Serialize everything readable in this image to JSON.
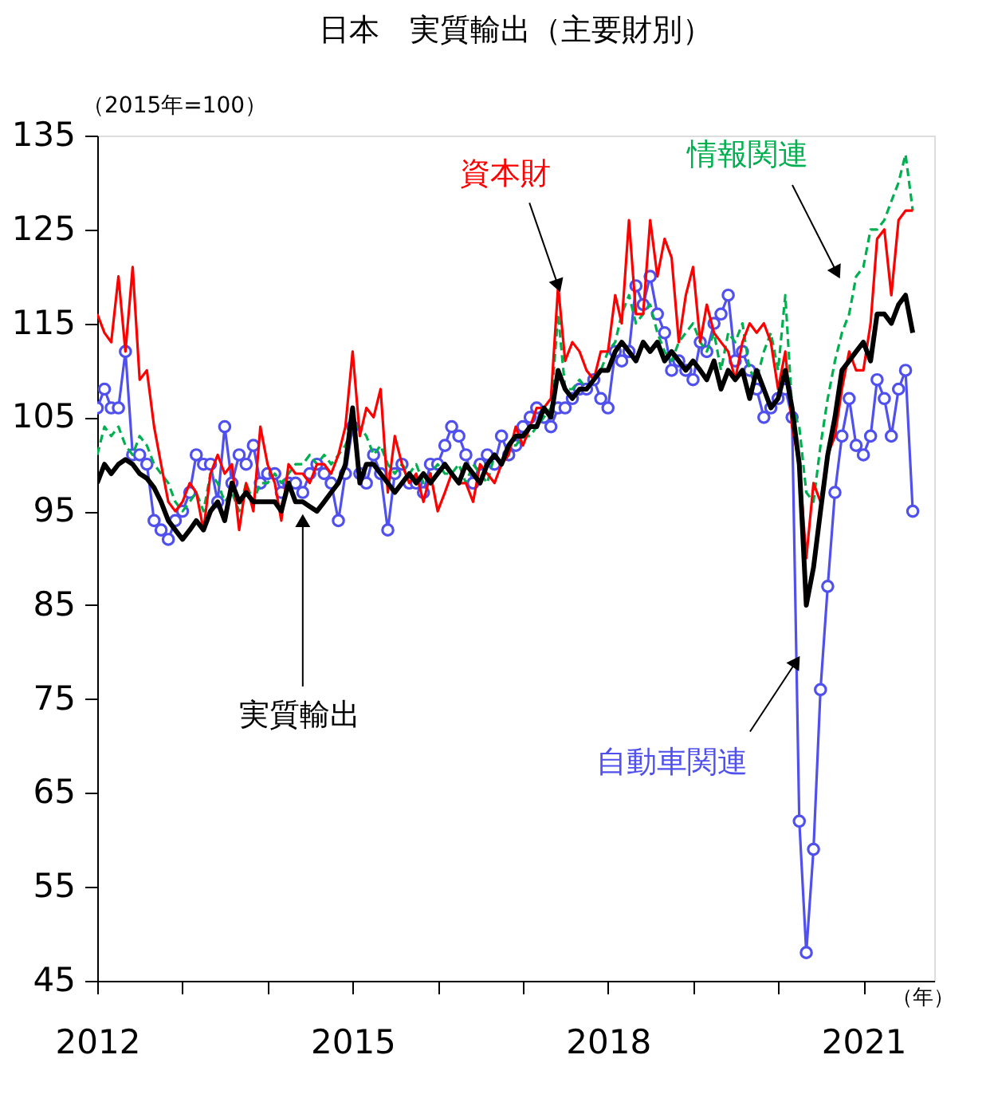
{
  "chart_data": {
    "type": "line",
    "title": "日本　実質輸出（主要財別）",
    "ylabel": "（2015年=100）",
    "xlabel": "（年）",
    "x": [
      "2012-01",
      "2012-02",
      "2012-03",
      "2012-04",
      "2012-05",
      "2012-06",
      "2012-07",
      "2012-08",
      "2012-09",
      "2012-10",
      "2012-11",
      "2012-12",
      "2013-01",
      "2013-02",
      "2013-03",
      "2013-04",
      "2013-05",
      "2013-06",
      "2013-07",
      "2013-08",
      "2013-09",
      "2013-10",
      "2013-11",
      "2013-12",
      "2014-01",
      "2014-02",
      "2014-03",
      "2014-04",
      "2014-05",
      "2014-06",
      "2014-07",
      "2014-08",
      "2014-09",
      "2014-10",
      "2014-11",
      "2014-12",
      "2015-01",
      "2015-02",
      "2015-03",
      "2015-04",
      "2015-05",
      "2015-06",
      "2015-07",
      "2015-08",
      "2015-09",
      "2015-10",
      "2015-11",
      "2015-12",
      "2016-01",
      "2016-02",
      "2016-03",
      "2016-04",
      "2016-05",
      "2016-06",
      "2016-07",
      "2016-08",
      "2016-09",
      "2016-10",
      "2016-11",
      "2016-12",
      "2017-01",
      "2017-02",
      "2017-03",
      "2017-04",
      "2017-05",
      "2017-06",
      "2017-07",
      "2017-08",
      "2017-09",
      "2017-10",
      "2017-11",
      "2017-12",
      "2018-01",
      "2018-02",
      "2018-03",
      "2018-04",
      "2018-05",
      "2018-06",
      "2018-07",
      "2018-08",
      "2018-09",
      "2018-10",
      "2018-11",
      "2018-12",
      "2019-01",
      "2019-02",
      "2019-03",
      "2019-04",
      "2019-05",
      "2019-06",
      "2019-07",
      "2019-08",
      "2019-09",
      "2019-10",
      "2019-11",
      "2019-12",
      "2020-01",
      "2020-02",
      "2020-03",
      "2020-04",
      "2020-05",
      "2020-06",
      "2020-07",
      "2020-08",
      "2020-09",
      "2020-10",
      "2020-11",
      "2020-12",
      "2021-01",
      "2021-02",
      "2021-03",
      "2021-04",
      "2021-05",
      "2021-06",
      "2021-07",
      "2021-08"
    ],
    "xlim": [
      "2012-01",
      "2021-11"
    ],
    "xticks": [
      {
        "value": "2012-01",
        "label": "2012"
      },
      {
        "value": "2013-01",
        "label": null
      },
      {
        "value": "2014-01",
        "label": null
      },
      {
        "value": "2015-01",
        "label": "2015"
      },
      {
        "value": "2016-01",
        "label": null
      },
      {
        "value": "2017-01",
        "label": null
      },
      {
        "value": "2018-01",
        "label": "2018"
      },
      {
        "value": "2019-01",
        "label": null
      },
      {
        "value": "2020-01",
        "label": null
      },
      {
        "value": "2021-01",
        "label": "2021"
      }
    ],
    "ylim": [
      45,
      135
    ],
    "yticks": [
      45,
      55,
      65,
      75,
      85,
      95,
      105,
      115,
      125,
      135
    ],
    "series": [
      {
        "color": "#000000",
        "values": [
          98,
          100,
          99,
          100,
          100.5,
          100,
          99,
          98.5,
          97.5,
          96,
          94,
          93,
          92,
          93,
          94,
          93,
          95,
          96,
          94,
          98,
          96,
          97,
          96,
          96,
          96,
          96,
          95,
          98,
          96,
          96,
          95.5,
          95,
          96,
          97,
          98,
          100,
          106,
          98,
          100,
          100,
          99,
          98,
          97,
          98,
          99,
          98,
          99,
          98,
          99,
          100,
          99,
          98,
          100,
          99,
          98,
          100,
          101,
          100,
          102,
          103,
          103,
          104,
          104,
          106,
          105,
          110,
          108,
          107,
          108,
          108,
          109,
          110,
          110,
          112,
          113,
          112,
          111,
          113,
          112,
          113,
          111,
          112,
          111,
          110,
          111,
          110,
          109,
          111,
          108,
          110,
          109,
          110,
          107,
          110,
          108,
          106,
          107,
          110,
          106,
          100,
          85,
          89,
          95,
          101,
          105,
          110,
          111,
          112,
          113,
          111,
          116,
          116,
          115,
          117,
          118,
          114
        ]
      },
      {
        "color": "#ff0000",
        "values": [
          116,
          114,
          113,
          120,
          112,
          121,
          109,
          110,
          104,
          100,
          96,
          95,
          96,
          98,
          97,
          93,
          99,
          101,
          99,
          100,
          93,
          98,
          95,
          104,
          100,
          98,
          94,
          100,
          99,
          99,
          98,
          100,
          100,
          99,
          101,
          104,
          112,
          103,
          106,
          105,
          108,
          97,
          103,
          100,
          98,
          99,
          96,
          99,
          95,
          97,
          99,
          98,
          98,
          96,
          100,
          99,
          98,
          100,
          101,
          104,
          102,
          104,
          106,
          106,
          107,
          119,
          111,
          113,
          112,
          110,
          109,
          112,
          112,
          118,
          115,
          126,
          116,
          116,
          126,
          120,
          124,
          122,
          113,
          118,
          121,
          113,
          117,
          114,
          113,
          112,
          109,
          113,
          115,
          114,
          115,
          113,
          108,
          112,
          104,
          100,
          90,
          98,
          96,
          101,
          103,
          108,
          112,
          110,
          110,
          115,
          124,
          125,
          118,
          126,
          127,
          127
        ]
      },
      {
        "color": "#00b050",
        "line_style": "dashed",
        "values": [
          101,
          104,
          103,
          104,
          102,
          101,
          103,
          102,
          100,
          99,
          98,
          96,
          95,
          96,
          97,
          95,
          99,
          98,
          96,
          97,
          95,
          98,
          96,
          98,
          98,
          99,
          98,
          99,
          100,
          100,
          101,
          100,
          101,
          100,
          101,
          102,
          104,
          104,
          103,
          101,
          102,
          100,
          99,
          100,
          99,
          100,
          98,
          99,
          100,
          99,
          99,
          100,
          98,
          100,
          99,
          98,
          101,
          100,
          102,
          102,
          103,
          103,
          104,
          105,
          106,
          116,
          108,
          108,
          109,
          108,
          109,
          110,
          112,
          113,
          116,
          118,
          115,
          116,
          117,
          114,
          112,
          111,
          113,
          114,
          115,
          113,
          112,
          114,
          110,
          114,
          113,
          115,
          110,
          109,
          112,
          114,
          110,
          118,
          106,
          104,
          97,
          96,
          102,
          107,
          111,
          114,
          116,
          120,
          121,
          125,
          125,
          126,
          128,
          130,
          133,
          127
        ]
      },
      {
        "color": "#5050ee",
        "marker": "circle",
        "values": [
          106,
          108,
          106,
          106,
          112,
          101,
          101,
          100,
          94,
          93,
          92,
          94,
          95,
          97,
          101,
          100,
          100,
          96,
          104,
          98,
          101,
          100,
          102,
          98,
          99,
          99,
          97,
          98,
          98,
          97,
          99,
          100,
          99,
          98,
          94,
          99,
          104,
          99,
          98,
          101,
          99,
          93,
          99,
          100,
          98,
          98,
          97,
          100,
          100,
          102,
          104,
          103,
          101,
          98,
          100,
          101,
          100,
          103,
          101,
          102,
          104,
          105,
          106,
          105,
          104,
          106,
          106,
          107,
          108,
          108,
          109,
          107,
          106,
          112,
          111,
          112,
          119,
          117,
          120,
          116,
          114,
          110,
          111,
          110,
          109,
          113,
          112,
          115,
          116,
          118,
          111,
          112,
          110,
          108,
          105,
          106,
          107,
          108,
          105,
          62,
          48,
          59,
          76,
          87,
          97,
          103,
          107,
          102,
          101,
          103,
          109,
          107,
          103,
          108,
          110,
          95
        ]
      }
    ],
    "annotations": [
      {
        "text": "実質輸出",
        "x": "2014-06",
        "y": 94
      },
      {
        "text": "資本財",
        "x": "2017-06",
        "y": 119
      },
      "情報関連",
      {
        "text": "自動車関連",
        "x": "2020-03-19",
        "y": 79
      }
    ]
  }
}
